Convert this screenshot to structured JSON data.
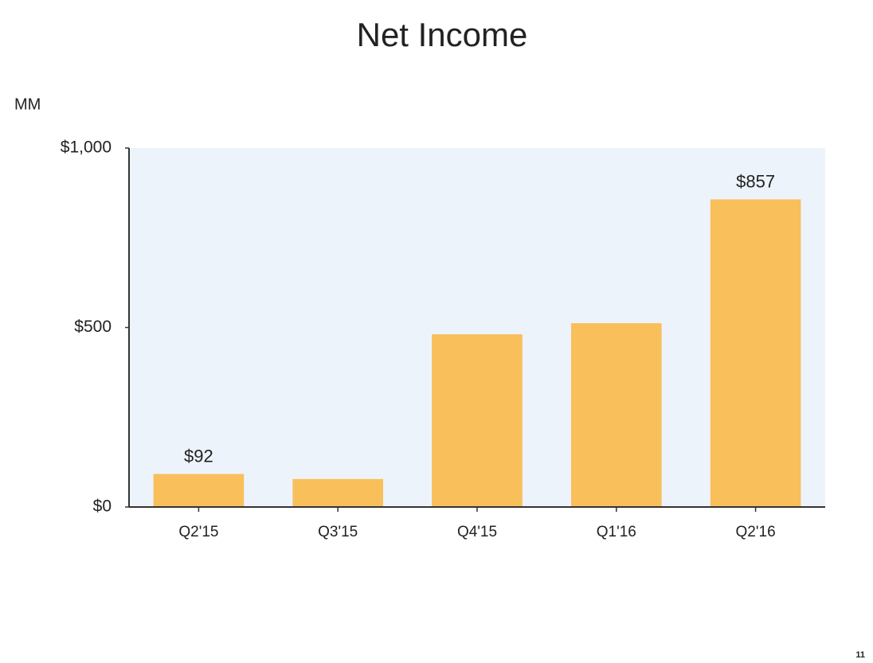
{
  "chart_data": {
    "type": "bar",
    "title": "Net Income",
    "unit_label": "MM",
    "page_number": "11",
    "categories": [
      "Q2'15",
      "Q3'15",
      "Q4'15",
      "Q1'16",
      "Q2'16"
    ],
    "values": [
      92,
      78,
      481,
      512,
      857
    ],
    "value_labels": [
      "$92",
      null,
      null,
      null,
      "$857"
    ],
    "color": "#f9bf5b",
    "ylim": [
      0,
      1000
    ],
    "yticks": [
      {
        "value": 0,
        "label": "$0"
      },
      {
        "value": 500,
        "label": "$500"
      },
      {
        "value": 1000,
        "label": "$1,000"
      }
    ],
    "grid": false
  }
}
